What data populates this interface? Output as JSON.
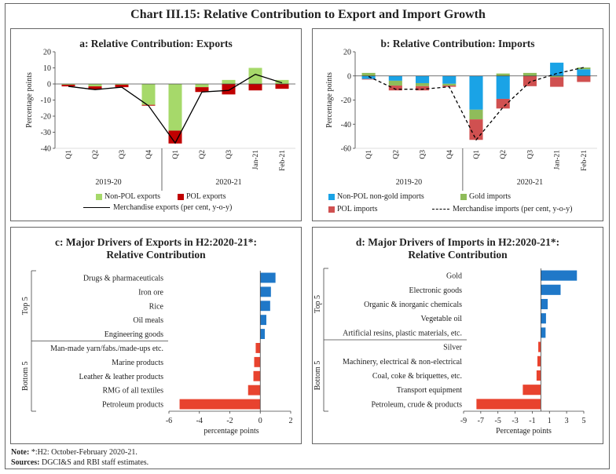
{
  "title": "Chart III.15: Relative Contribution to Export and Import Growth",
  "notes": {
    "note_label": "Note:",
    "note_text": "*:H2: October-February 2020-21.",
    "sources_label": "Sources:",
    "sources_text": "DGCI&S and RBI staff estimates."
  },
  "colors": {
    "nonpol_exports": "#a6d96a",
    "pol_exports": "#c00000",
    "nonpol_nongold_imports": "#1aa3e6",
    "gold_imports": "#8fbc5a",
    "pol_imports": "#d05050",
    "top5_bar": "#1f78c8",
    "bottom5_bar": "#e8432e"
  },
  "chart_data": [
    {
      "id": "a",
      "type": "bar",
      "title": "a: Relative Contribution: Exports",
      "ylabel": "Percentage points",
      "ylim": [
        -40,
        20
      ],
      "yticks": [
        20,
        10,
        0,
        -10,
        -20,
        -30,
        -40
      ],
      "categories": [
        "Q1",
        "Q2",
        "Q3",
        "Q4",
        "Q1",
        "Q2",
        "Q3",
        "Jan-21",
        "Feb-21"
      ],
      "year_groups": [
        {
          "label": "2019-20",
          "start": 0,
          "end": 3
        },
        {
          "label": "2020-21",
          "start": 4,
          "end": 8
        }
      ],
      "series": [
        {
          "name": "Non-POL exports",
          "kind": "bar",
          "values": [
            -0.5,
            -1.5,
            -0.5,
            -13,
            -29,
            -2,
            2.5,
            10,
            2.5
          ]
        },
        {
          "name": "POL exports",
          "kind": "bar",
          "values": [
            -1,
            -2,
            -1.5,
            -0.5,
            -8,
            -3,
            -6.5,
            -4,
            -3
          ]
        },
        {
          "name": "Merchandise exports  (per cent, y-o-y)",
          "kind": "line",
          "values": [
            -1.5,
            -3.5,
            -2,
            -13.5,
            -36.7,
            -5,
            -4,
            6,
            0.7
          ]
        }
      ],
      "legend": [
        "Non-POL exports",
        "POL exports",
        "Merchandise exports  (per cent, y-o-y)"
      ]
    },
    {
      "id": "b",
      "type": "bar",
      "title": "b: Relative Contribution: Imports",
      "ylabel": "Percentage points",
      "ylim": [
        -60,
        20
      ],
      "yticks": [
        20,
        0,
        -20,
        -40,
        -60
      ],
      "categories": [
        "Q1",
        "Q2",
        "Q3",
        "Q4",
        "Q1",
        "Q2",
        "Q3",
        "Jan-21",
        "Feb-21"
      ],
      "year_groups": [
        {
          "label": "2019-20",
          "start": 0,
          "end": 3
        },
        {
          "label": "2020-21",
          "start": 4,
          "end": 8
        }
      ],
      "series": [
        {
          "name": "Non-POL non-gold imports",
          "kind": "bar",
          "values": [
            -2.5,
            -4,
            -6,
            -6.5,
            -28,
            -19,
            0,
            11,
            5.5
          ]
        },
        {
          "name": "Gold imports",
          "kind": "bar",
          "values": [
            2.5,
            -4,
            -2.5,
            -1.5,
            -8,
            2,
            2.5,
            -1,
            1.5
          ]
        },
        {
          "name": "POL imports",
          "kind": "bar",
          "values": [
            -0.5,
            -4,
            -3.5,
            -1,
            -17,
            -8,
            -8.5,
            -8,
            -5
          ]
        },
        {
          "name": "Merchandise imports (per cent, y-o-y)",
          "kind": "line",
          "values": [
            -0.5,
            -11,
            -11,
            -9,
            -53,
            -26,
            -5,
            2,
            7
          ]
        }
      ],
      "legend": [
        "Non-POL non-gold imports",
        "Gold imports",
        "POL imports",
        "Merchandise imports (per cent, y-o-y)"
      ]
    },
    {
      "id": "c",
      "type": "bar",
      "orientation": "horizontal",
      "title_line1": "c: Major Drivers of Exports in H2:2020-21*:",
      "title_line2": "Relative Contribution",
      "xlabel": "percentage points",
      "xlim": [
        -6,
        2
      ],
      "xticks": [
        -6,
        -4,
        -2,
        0,
        2
      ],
      "group_labels": [
        "Top 5",
        "Bottom 5"
      ],
      "categories": [
        "Drugs & pharmaceuticals",
        "Iron ore",
        "Rice",
        "Oil meals",
        "Engineering goods",
        "Man-made yarn/fabs./made-ups etc.",
        "Marine products",
        "Leather & leather products",
        "RMG of all textiles",
        "Petroleum products"
      ],
      "values": [
        1.0,
        0.7,
        0.65,
        0.4,
        0.3,
        -0.3,
        -0.4,
        -0.45,
        -0.8,
        -5.3
      ]
    },
    {
      "id": "d",
      "type": "bar",
      "orientation": "horizontal",
      "title_line1": "d: Major Drivers of Imports in H2:2020-21*:",
      "title_line2": "Relative Contribution",
      "xlabel": "Percentage points",
      "xlim": [
        -9,
        5
      ],
      "xticks": [
        -9,
        -7,
        -5,
        -3,
        -1,
        1,
        3,
        5
      ],
      "group_labels": [
        "Top 5",
        "Bottom 5"
      ],
      "categories": [
        "Gold",
        "Electronic goods",
        "Organic & inorganic chemicals",
        "Vegetable oil",
        "Artificial resins, plastic materials, etc.",
        "Silver",
        "Machinery, electrical & non-electrical",
        "Coal, coke & briquettes, etc.",
        "Transport equipment",
        "Petroleum, crude & products"
      ],
      "values": [
        4.2,
        2.3,
        0.8,
        0.6,
        0.55,
        -0.3,
        -0.4,
        -0.5,
        -2.1,
        -7.5
      ]
    }
  ]
}
